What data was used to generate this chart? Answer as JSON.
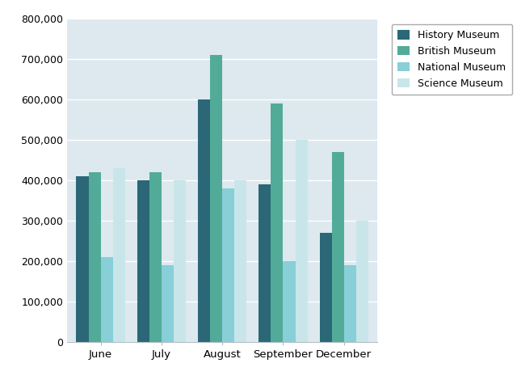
{
  "months": [
    "June",
    "July",
    "August",
    "September",
    "December"
  ],
  "museums": [
    "History Museum",
    "British Museum",
    "National Museum",
    "Science Museum"
  ],
  "values": {
    "History Museum": [
      410000,
      400000,
      600000,
      390000,
      270000
    ],
    "British Museum": [
      420000,
      420000,
      710000,
      590000,
      470000
    ],
    "National Museum": [
      210000,
      190000,
      380000,
      200000,
      190000
    ],
    "Science Museum": [
      430000,
      400000,
      400000,
      500000,
      300000
    ]
  },
  "colors": {
    "History Museum": "#2b6777",
    "British Museum": "#52ab98",
    "National Museum": "#88cfd8",
    "Science Museum": "#c8e6ea"
  },
  "ylim": [
    0,
    800000
  ],
  "ytick_step": 100000,
  "plot_bg_color": "#dde8ef",
  "outer_bg_color": "#ffffff",
  "grid_color": "#ffffff",
  "spine_color": "#b0bec5"
}
